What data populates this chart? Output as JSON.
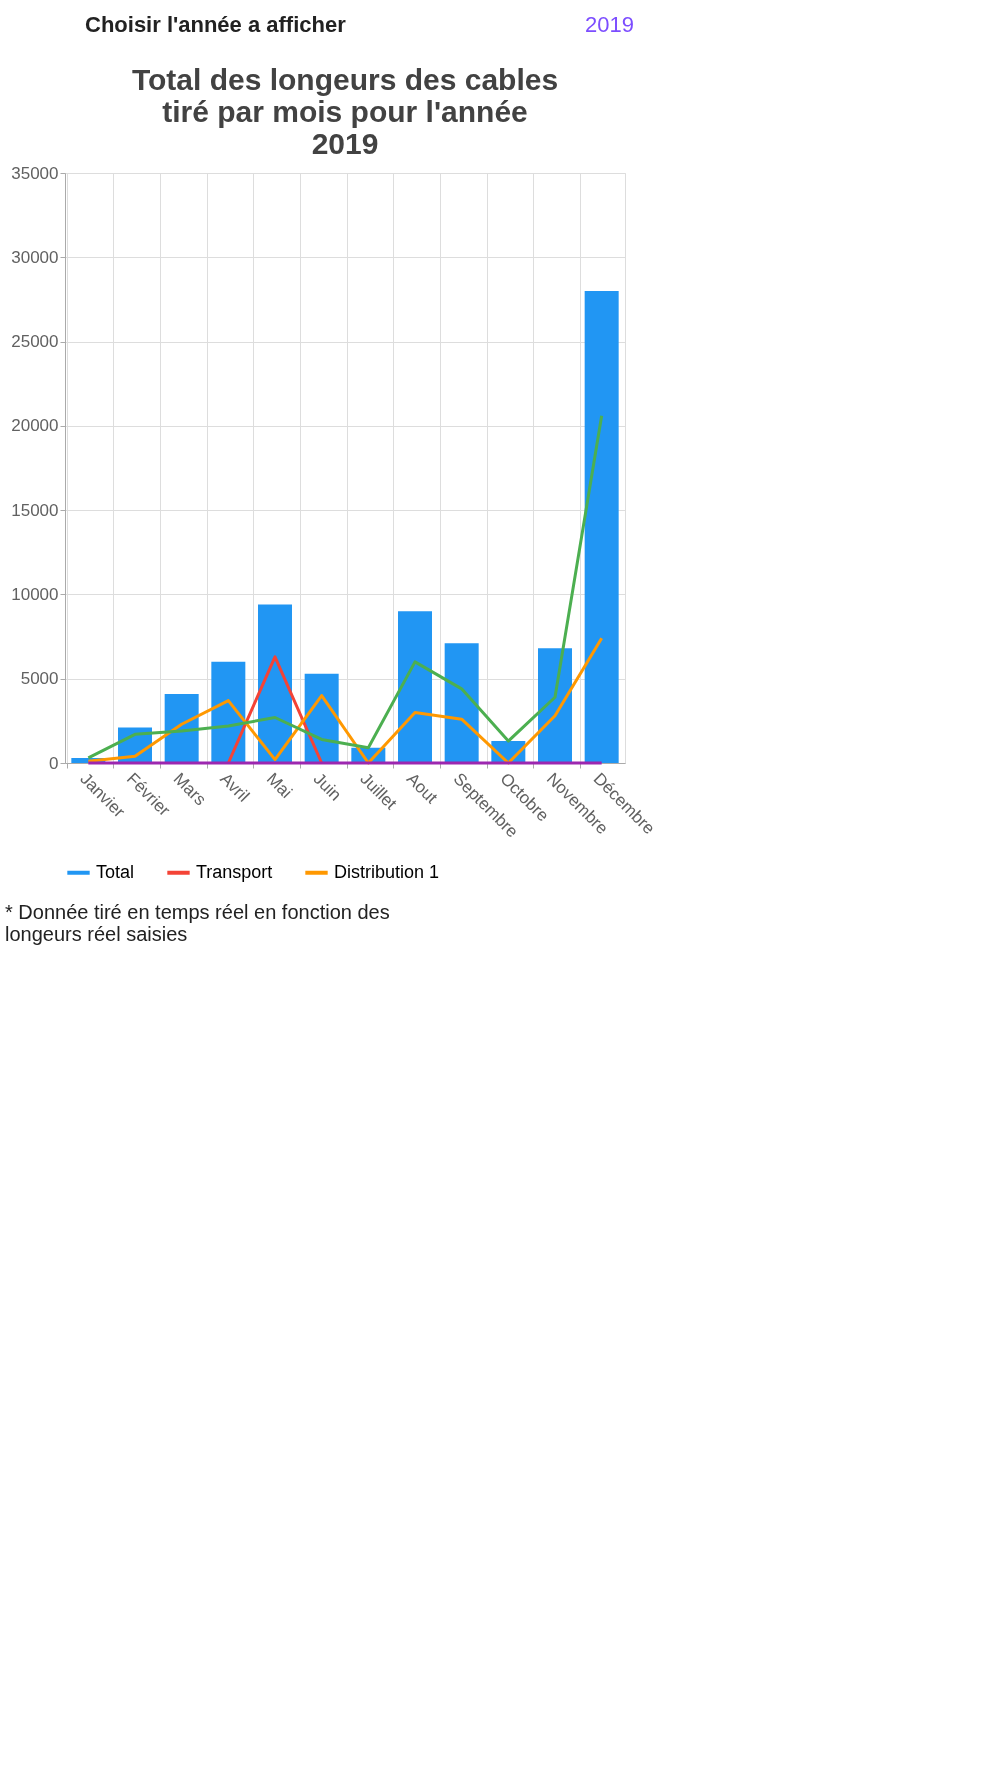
{
  "chart_data": {
    "type": "bar",
    "title": "Total des longeurs des cables tiré par mois pour l'année 2019",
    "categories": [
      "Janvier",
      "Février",
      "Mars",
      "Avril",
      "Mai",
      "Juin",
      "Juillet",
      "Aout",
      "Septembre",
      "Octobre",
      "Novembre",
      "Décembre"
    ],
    "series": [
      {
        "name": "Total",
        "color": "#2196f3",
        "values": [
          300,
          2100,
          4100,
          6000,
          9400,
          5300,
          900,
          9000,
          7100,
          1300,
          6800,
          28000
        ]
      },
      {
        "name": "Transport",
        "type": "line",
        "color": "#f44336",
        "values": [
          null,
          null,
          null,
          0,
          6300,
          0,
          null,
          null,
          null,
          null,
          null,
          null
        ]
      },
      {
        "name": "Distribution 1",
        "type": "line",
        "color": "#ff9800",
        "values": [
          100,
          400,
          2300,
          3700,
          200,
          4000,
          0,
          3000,
          2600,
          0,
          2800,
          7400
        ]
      },
      {
        "type": "line",
        "color": "#4caf50",
        "values": [
          300,
          1700,
          1900,
          2200,
          2700,
          1400,
          900,
          6000,
          4400,
          1300,
          3900,
          20600
        ]
      },
      {
        "type": "line",
        "color": "#9c27b0",
        "values": [
          0,
          0,
          0,
          0,
          0,
          0,
          0,
          0,
          0,
          0,
          0,
          0
        ]
      }
    ],
    "ylim": [
      0,
      35000
    ],
    "yticks": [
      0,
      5000,
      10000,
      15000,
      20000,
      25000,
      30000,
      35000
    ],
    "grid": true,
    "legend": "bottom",
    "annotations": [
      "Choisir l'année a afficher",
      "2019",
      "* Donnée tiré en temps réel en fonction des longeurs réel saisies"
    ]
  }
}
